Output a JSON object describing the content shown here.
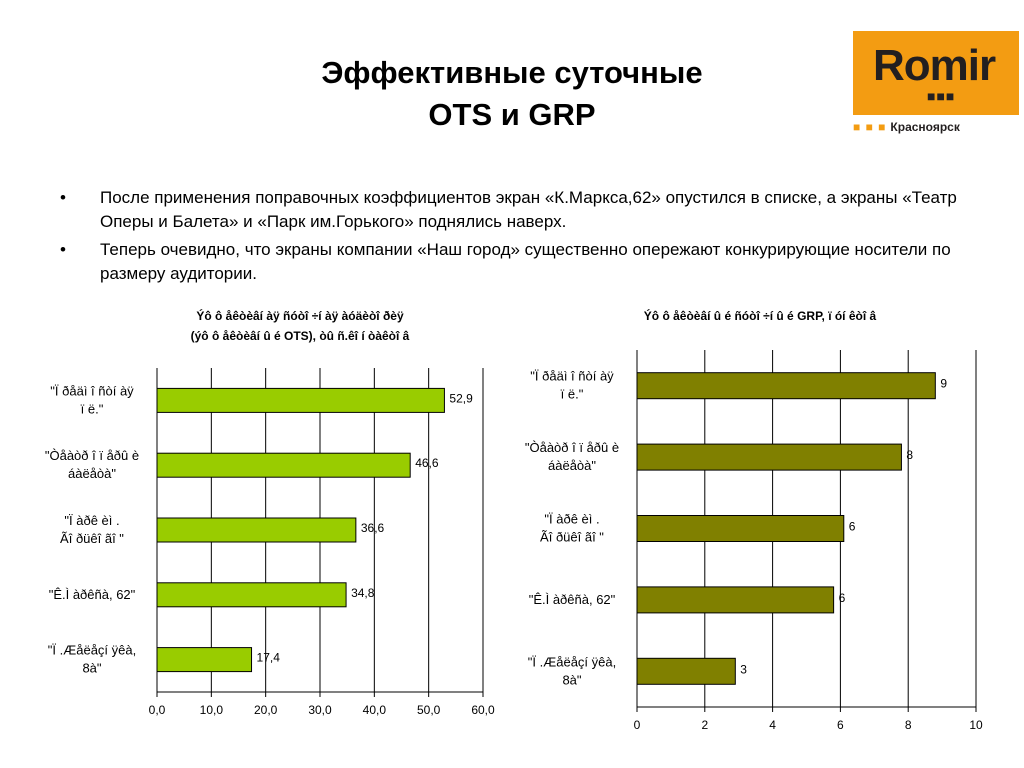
{
  "slide": {
    "title_line1": "Эффективные суточные",
    "title_line2": "OTS и GRP"
  },
  "logo": {
    "text": "Romir",
    "sub": "Красноярск",
    "brand_color": "#f39c12"
  },
  "bullets": [
    "После применения поправочных коэффициентов экран «К.Маркса,62» опустился в списке, а экраны «Театр Оперы и Балета» и «Парк им.Горького» поднялись наверх.",
    "Теперь очевидно, что экраны компании «Наш город» существенно опережают конкурирующие носители по размеру аудитории."
  ],
  "chart_data": [
    {
      "type": "bar",
      "orientation": "horizontal",
      "title_line1": "Ýô ô åêòèâí àÿ ñóòî ÷í àÿ àóäèòî ðèÿ",
      "title_line2": "(ýô ô åêòèâí û é OTS), òû ñ.êî í òàêòî â",
      "categories": [
        [
          "\"Ï ðåäì î ñòí àÿ",
          "ï ë.\""
        ],
        [
          "\"Òåàòð î ï åðû  è",
          "áàëåòà\""
        ],
        [
          "\"Ï àðê èì .",
          "Ãî ðüêî ãî \""
        ],
        [
          "\"Ê.Ì  àðêñà, 62\""
        ],
        [
          "\"Ï .Æåëåçí ÿêà,",
          "8à\""
        ]
      ],
      "values": [
        52.9,
        46.6,
        36.6,
        34.8,
        17.4
      ],
      "value_labels": [
        "52,9",
        "46,6",
        "36,6",
        "34,8",
        "17,4"
      ],
      "xlim": [
        0,
        60
      ],
      "ticks": [
        "0,0",
        "10,0",
        "20,0",
        "30,0",
        "40,0",
        "50,0",
        "60,0"
      ],
      "grid": true,
      "bar_color": "#99cc00"
    },
    {
      "type": "bar",
      "orientation": "horizontal",
      "title_line1": "Ýô ô åêòèâí û é ñóòî ÷í û é GRP, ï óí êòî â",
      "title_line2": "",
      "categories": [
        [
          "\"Ï ðåäì î ñòí àÿ",
          "ï ë.\""
        ],
        [
          "\"Òåàòð î ï åðû  è",
          "áàëåòà\""
        ],
        [
          "\"Ï àðê èì .",
          "Ãî ðüêî ãî \""
        ],
        [
          "\"Ê.Ì  àðêñà, 62\""
        ],
        [
          "\"Ï .Æåëåçí ÿêà,",
          "8à\""
        ]
      ],
      "values": [
        8.8,
        7.8,
        6.1,
        5.8,
        2.9
      ],
      "value_labels": [
        "9",
        "8",
        "6",
        "6",
        "3"
      ],
      "xlim": [
        0,
        10
      ],
      "ticks": [
        "0",
        "2",
        "4",
        "6",
        "8",
        "10"
      ],
      "grid": true,
      "bar_color": "#808000"
    }
  ]
}
